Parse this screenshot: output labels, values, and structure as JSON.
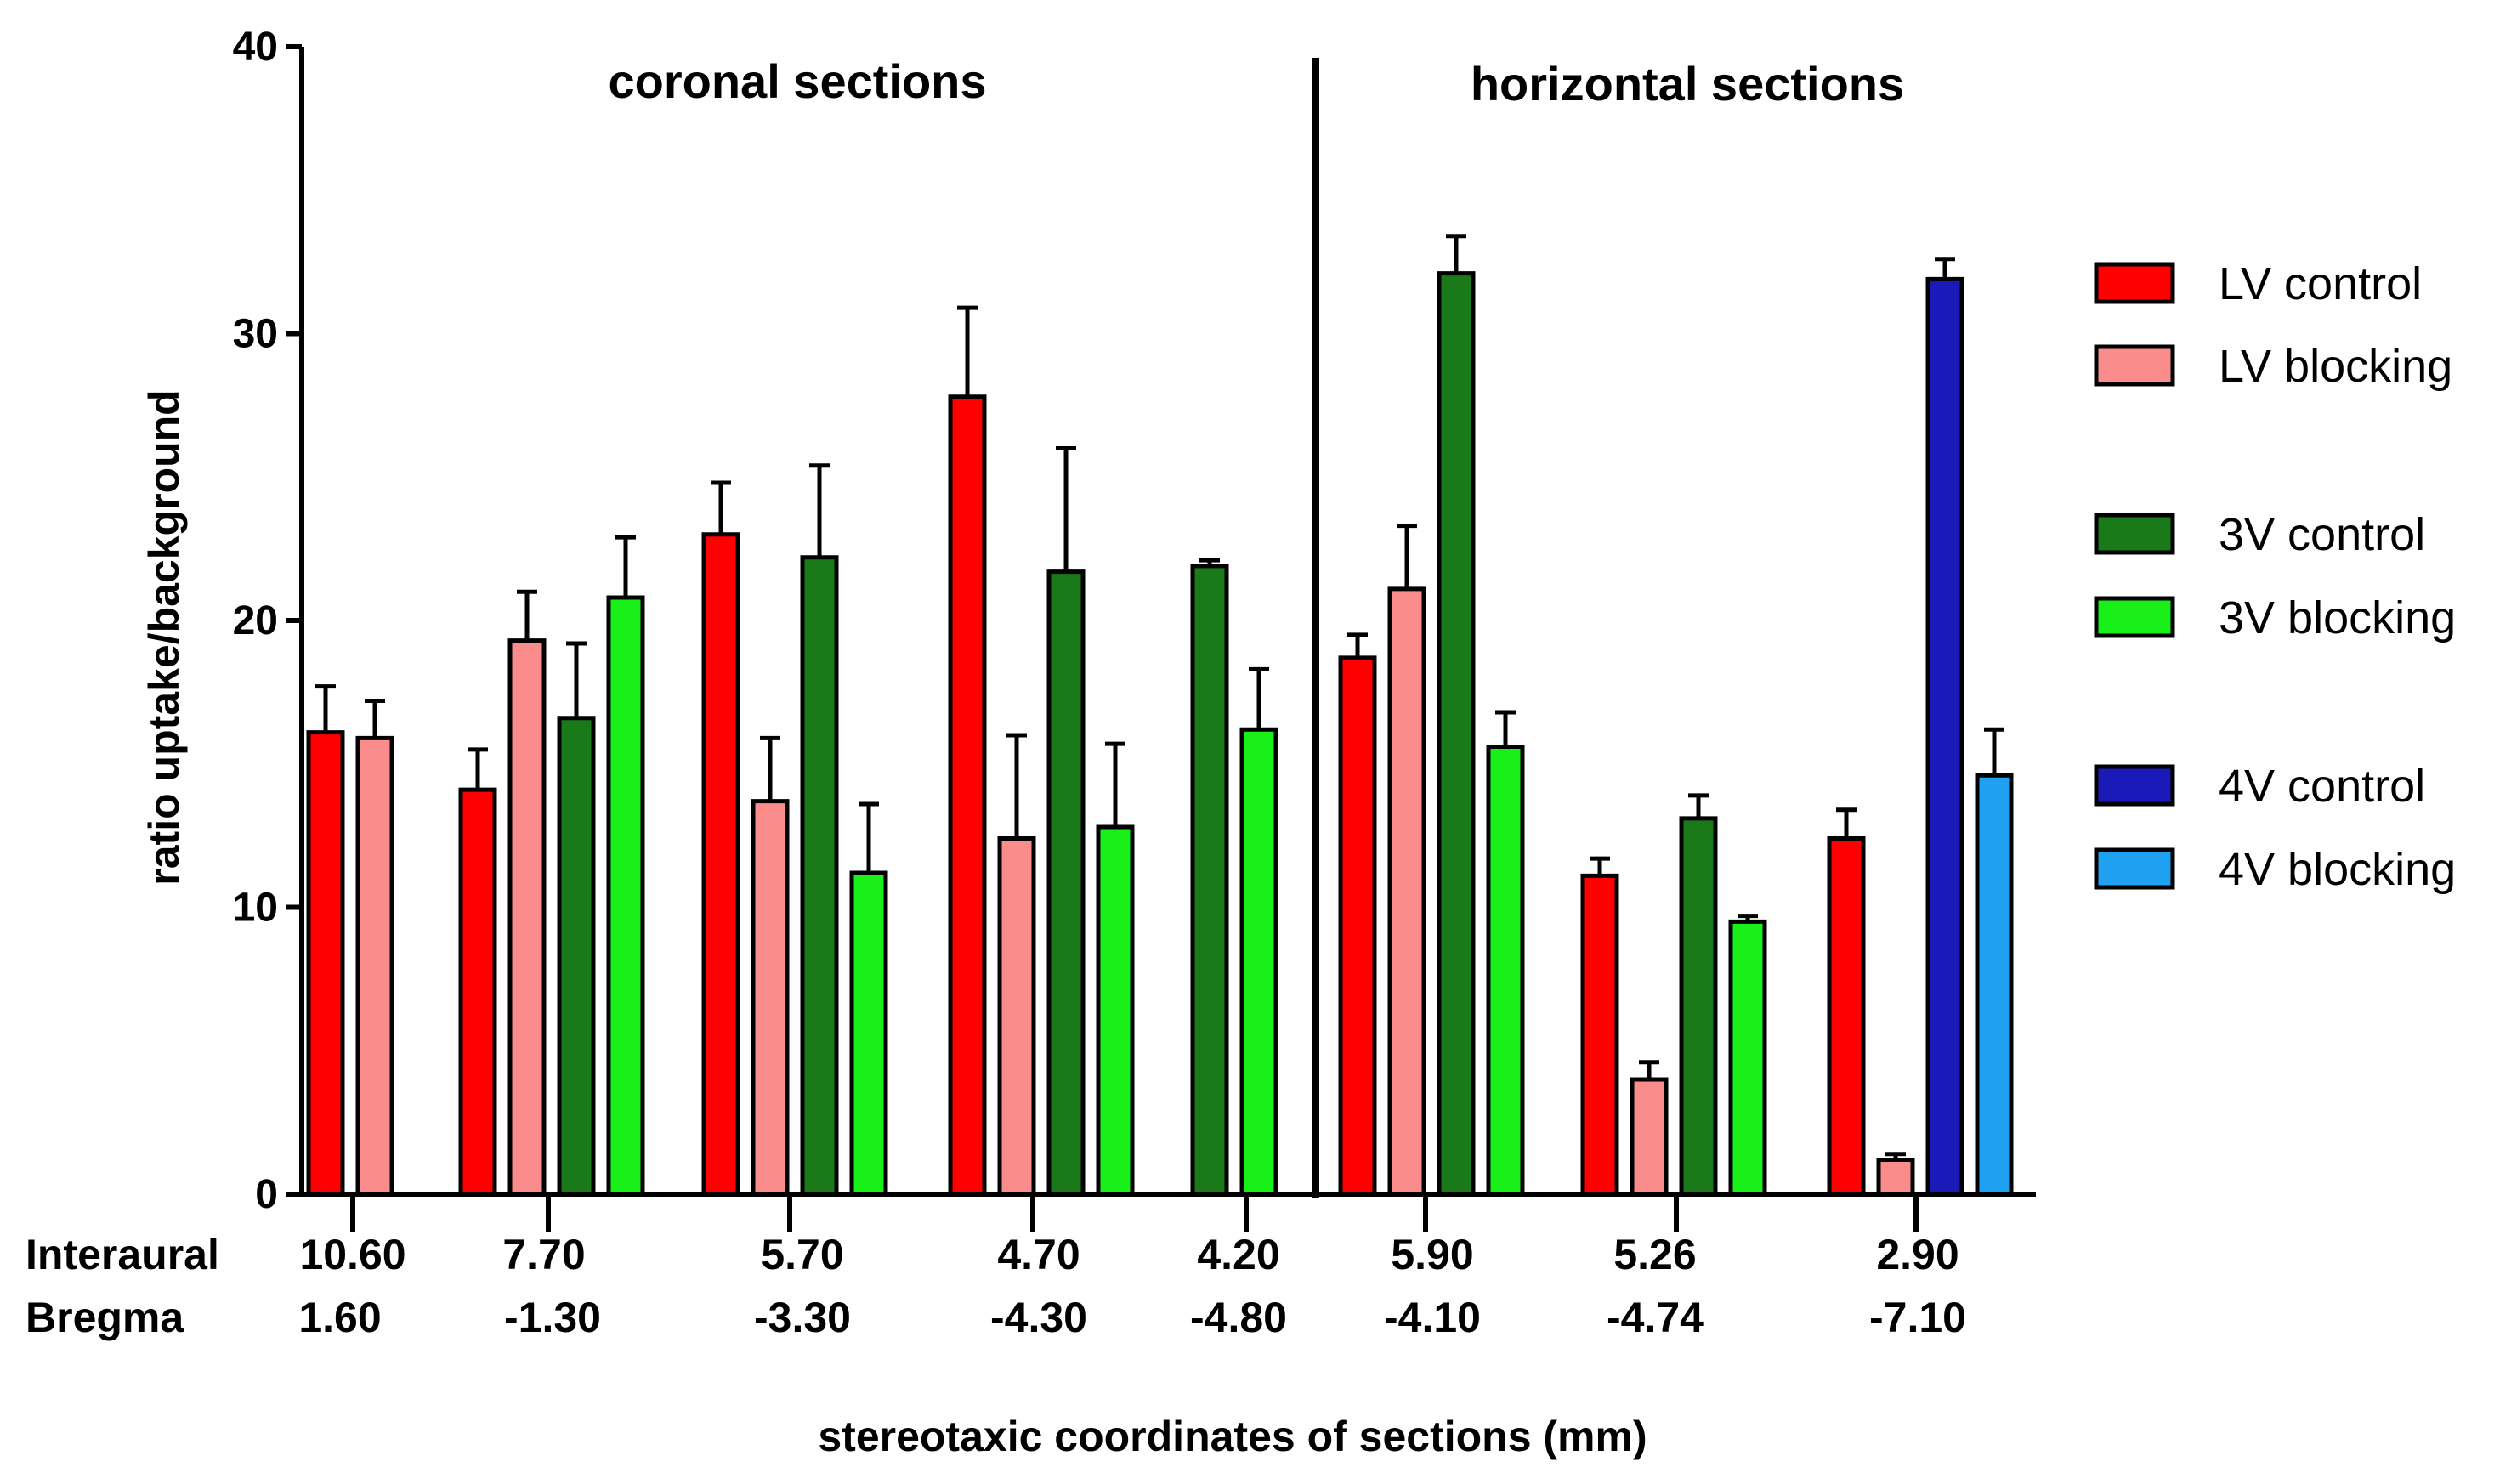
{
  "chart_data": {
    "type": "bar",
    "title": "",
    "ylabel": "ratio uptake/background",
    "xlabel": "stereotaxic coordinates of sections (mm)",
    "ylim": [
      0,
      40
    ],
    "yticks": [
      0,
      10,
      20,
      30,
      40
    ],
    "row_labels": {
      "interaural": "Interaural",
      "bregma": "Bregma"
    },
    "section_titles": {
      "coronal": "coronal sections",
      "horizontal": "horizontal sections"
    },
    "legend": [
      {
        "key": "lv_control",
        "label": "LV control",
        "color": "#ff0000"
      },
      {
        "key": "lv_blocking",
        "label": "LV blocking",
        "color": "#fa8c8c"
      },
      {
        "key": "3v_control",
        "label": "3V control",
        "color": "#1a7a1a"
      },
      {
        "key": "3v_blocking",
        "label": "3V blocking",
        "color": "#19f019"
      },
      {
        "key": "4v_control",
        "label": "4V control",
        "color": "#1a1ab8"
      },
      {
        "key": "4v_blocking",
        "label": "4V blocking",
        "color": "#1fa0f0"
      }
    ],
    "groups": [
      {
        "interaural": "10.60",
        "bregma": "1.60",
        "section": "coronal",
        "bars": [
          {
            "series": "lv_control",
            "value": 16.1,
            "error": 1.6
          },
          {
            "series": "lv_blocking",
            "value": 15.9,
            "error": 1.3
          }
        ]
      },
      {
        "interaural": "7.70",
        "bregma": "-1.30",
        "section": "coronal",
        "bars": [
          {
            "series": "lv_control",
            "value": 14.1,
            "error": 1.4
          },
          {
            "series": "lv_blocking",
            "value": 19.3,
            "error": 1.7
          },
          {
            "series": "3v_control",
            "value": 16.6,
            "error": 2.6
          },
          {
            "series": "3v_blocking",
            "value": 20.8,
            "error": 2.1
          }
        ]
      },
      {
        "interaural": "5.70",
        "bregma": "-3.30",
        "section": "coronal",
        "bars": [
          {
            "series": "lv_control",
            "value": 23.0,
            "error": 1.8
          },
          {
            "series": "lv_blocking",
            "value": 13.7,
            "error": 2.2
          },
          {
            "series": "3v_control",
            "value": 22.2,
            "error": 3.2
          },
          {
            "series": "3v_blocking",
            "value": 11.2,
            "error": 2.4
          }
        ]
      },
      {
        "interaural": "4.70",
        "bregma": "-4.30",
        "section": "coronal",
        "bars": [
          {
            "series": "lv_control",
            "value": 27.8,
            "error": 3.1
          },
          {
            "series": "lv_blocking",
            "value": 12.4,
            "error": 3.6
          },
          {
            "series": "3v_control",
            "value": 21.7,
            "error": 4.3
          },
          {
            "series": "3v_blocking",
            "value": 12.8,
            "error": 2.9
          }
        ]
      },
      {
        "interaural": "4.20",
        "bregma": "-4.80",
        "section": "coronal",
        "bars": [
          {
            "series": "3v_control",
            "value": 21.9,
            "error": 0.2
          },
          {
            "series": "3v_blocking",
            "value": 16.2,
            "error": 2.1
          }
        ]
      },
      {
        "interaural": "5.90",
        "bregma": "-4.10",
        "section": "horizontal",
        "bars": [
          {
            "series": "lv_control",
            "value": 18.7,
            "error": 0.8
          },
          {
            "series": "lv_blocking",
            "value": 21.1,
            "error": 2.2
          },
          {
            "series": "3v_control",
            "value": 32.1,
            "error": 1.3
          },
          {
            "series": "3v_blocking",
            "value": 15.6,
            "error": 1.2
          }
        ]
      },
      {
        "interaural": "5.26",
        "bregma": "-4.74",
        "section": "horizontal",
        "bars": [
          {
            "series": "lv_control",
            "value": 11.1,
            "error": 0.6
          },
          {
            "series": "lv_blocking",
            "value": 4.0,
            "error": 0.6
          },
          {
            "series": "3v_control",
            "value": 13.1,
            "error": 0.8
          },
          {
            "series": "3v_blocking",
            "value": 9.5,
            "error": 0.2
          }
        ]
      },
      {
        "interaural": "2.90",
        "bregma": "-7.10",
        "section": "horizontal",
        "bars": [
          {
            "series": "lv_control",
            "value": 12.4,
            "error": 1.0
          },
          {
            "series": "lv_blocking",
            "value": 1.2,
            "error": 0.2
          },
          {
            "series": "4v_control",
            "value": 31.9,
            "error": 0.7
          },
          {
            "series": "4v_blocking",
            "value": 14.6,
            "error": 1.6
          }
        ]
      }
    ]
  }
}
